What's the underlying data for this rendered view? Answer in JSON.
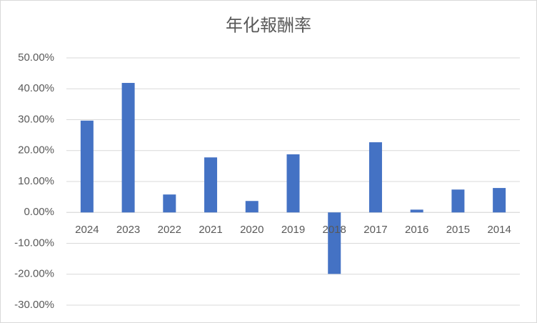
{
  "chart_data": {
    "type": "bar",
    "title": "年化報酬率",
    "categories": [
      "2024",
      "2023",
      "2022",
      "2021",
      "2020",
      "2019",
      "2018",
      "2017",
      "2016",
      "2015",
      "2014"
    ],
    "values": [
      29.7,
      41.9,
      5.8,
      17.8,
      3.7,
      18.8,
      -19.9,
      22.7,
      0.9,
      7.4,
      7.9
    ],
    "color": "#4472c4",
    "ylim": [
      -30,
      50
    ],
    "yticks": [
      {
        "value": -30,
        "label": "-30.00%"
      },
      {
        "value": -20,
        "label": "-20.00%"
      },
      {
        "value": -10,
        "label": "-10.00%"
      },
      {
        "value": 0,
        "label": "0.00%"
      },
      {
        "value": 10,
        "label": "10.00%"
      },
      {
        "value": 20,
        "label": "20.00%"
      },
      {
        "value": 30,
        "label": "30.00%"
      },
      {
        "value": 40,
        "label": "40.00%"
      },
      {
        "value": 50,
        "label": "50.00%"
      }
    ],
    "grid": true
  }
}
